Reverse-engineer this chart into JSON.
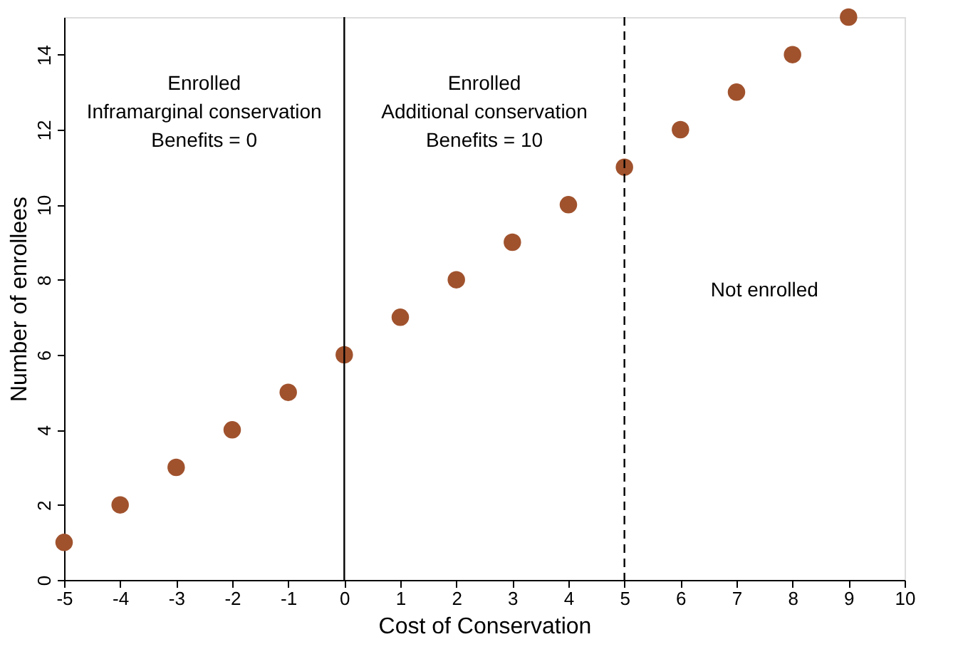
{
  "chart_data": {
    "type": "scatter",
    "xlabel": "Cost of Conservation",
    "ylabel": "Number of enrollees",
    "x": [
      -5,
      -4,
      -3,
      -2,
      -1,
      0,
      1,
      2,
      3,
      4,
      5,
      6,
      7,
      8,
      9
    ],
    "series": [
      {
        "color": "#a0522d",
        "values": [
          1,
          2,
          3,
          4,
          5,
          6,
          7,
          8,
          9,
          10,
          11,
          12,
          13,
          14,
          15
        ]
      }
    ],
    "xlim": [
      -5,
      10
    ],
    "xticks": [
      -5,
      -4,
      -3,
      -2,
      -1,
      0,
      1,
      2,
      3,
      4,
      5,
      6,
      7,
      8,
      9,
      10
    ],
    "ylim": [
      0,
      15
    ],
    "yticks": [
      0,
      2,
      4,
      6,
      8,
      10,
      12,
      14
    ],
    "grid": false,
    "marker": "circle",
    "ref_lines": [
      {
        "axis": "x",
        "value": 0,
        "line_style": "solid",
        "color": "#000000"
      },
      {
        "axis": "x",
        "value": 5,
        "line_style": "dashed",
        "color": "#000000"
      }
    ],
    "annotations": [
      "Enrolled\nInframarginal conservation\nBenefits = 0",
      "Enrolled\nAdditional conservation\nBenefits = 10",
      "Not enrolled"
    ]
  }
}
